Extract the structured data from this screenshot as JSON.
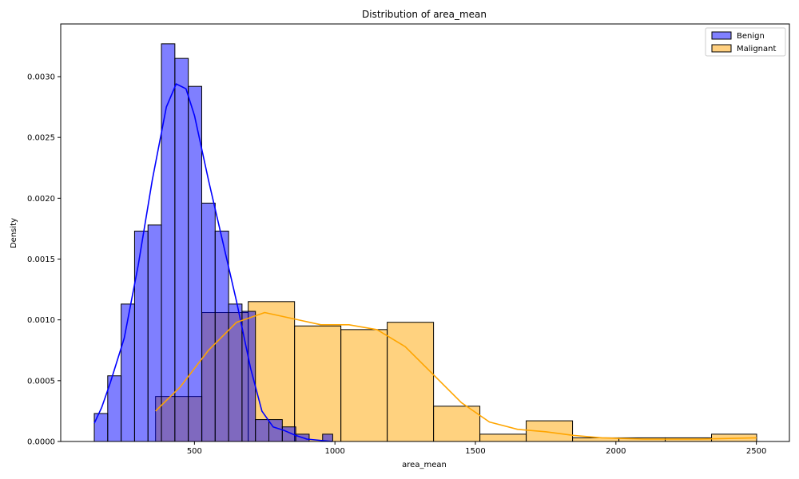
{
  "chart_data": {
    "type": "histogram",
    "title": "Distribution of area_mean",
    "xlabel": "area_mean",
    "ylabel": "Density",
    "xlim": [
      35,
      2150
    ],
    "ylim": [
      0,
      0.00343
    ],
    "x_ticks": [
      500,
      1000,
      1500,
      2000,
      2500
    ],
    "y_ticks": [
      0.0,
      0.0005,
      0.001,
      0.0015,
      0.002,
      0.0025,
      0.003
    ],
    "y_tick_labels": [
      "0.0000",
      "0.0005",
      "0.0010",
      "0.0015",
      "0.0020",
      "0.0025",
      "0.0030"
    ],
    "legend_position": "top-right",
    "series": [
      {
        "name": "Benign",
        "color": "#0000ff",
        "bar_color": "#8080ff",
        "bin_edges": [
          143.5,
          191.3,
          239.1,
          286.9,
          334.7,
          382.5,
          430.3,
          478.1,
          525.9,
          573.7,
          621.5,
          669.3,
          717.1,
          764.9,
          812.7,
          860.5,
          908.3,
          956.1,
          992.1
        ],
        "densities": [
          0.00023,
          0.00054,
          0.00113,
          0.00173,
          0.00178,
          0.00327,
          0.00315,
          0.00292,
          0.00196,
          0.00173,
          0.00113,
          0.00107,
          0.00018,
          0.00018,
          0.00012,
          6e-05,
          0.0,
          6e-05
        ],
        "kde": [
          [
            143.5,
            0.00015
          ],
          [
            170,
            0.00028
          ],
          [
            200,
            0.00048
          ],
          [
            250,
            0.00085
          ],
          [
            300,
            0.00145
          ],
          [
            350,
            0.00215
          ],
          [
            400,
            0.00275
          ],
          [
            435,
            0.00294
          ],
          [
            470,
            0.0029
          ],
          [
            500,
            0.00268
          ],
          [
            550,
            0.00215
          ],
          [
            600,
            0.00165
          ],
          [
            650,
            0.00115
          ],
          [
            700,
            0.0006
          ],
          [
            740,
            0.00025
          ],
          [
            780,
            0.00012
          ],
          [
            820,
            9e-05
          ],
          [
            860,
            5e-05
          ],
          [
            900,
            2e-05
          ],
          [
            990,
            0.0
          ]
        ]
      },
      {
        "name": "Malignant",
        "color": "#ffa500",
        "bar_color": "#ffd080",
        "bin_edges": [
          361.6,
          526.5,
          691.4,
          856.3,
          1021.2,
          1186.1,
          1351.0,
          1515.9,
          1680.8,
          1845.7,
          2010.6,
          2175.5,
          2340.4,
          2501.0
        ],
        "densities": [
          0.00037,
          0.00106,
          0.00115,
          0.00095,
          0.00092,
          0.00098,
          0.00029,
          6e-05,
          0.00017,
          3e-05,
          3e-05,
          3e-05,
          6e-05
        ],
        "kde": [
          [
            361.6,
            0.00025
          ],
          [
            450,
            0.00045
          ],
          [
            550,
            0.00075
          ],
          [
            650,
            0.00098
          ],
          [
            750,
            0.00106
          ],
          [
            850,
            0.00101
          ],
          [
            950,
            0.00096
          ],
          [
            1050,
            0.00096
          ],
          [
            1150,
            0.00092
          ],
          [
            1250,
            0.00078
          ],
          [
            1350,
            0.00055
          ],
          [
            1450,
            0.00032
          ],
          [
            1550,
            0.00016
          ],
          [
            1650,
            0.0001
          ],
          [
            1750,
            8e-05
          ],
          [
            1850,
            5e-05
          ],
          [
            1950,
            3e-05
          ],
          [
            2100,
            2e-05
          ],
          [
            2300,
            2e-05
          ],
          [
            2501,
            3e-05
          ]
        ]
      }
    ]
  }
}
